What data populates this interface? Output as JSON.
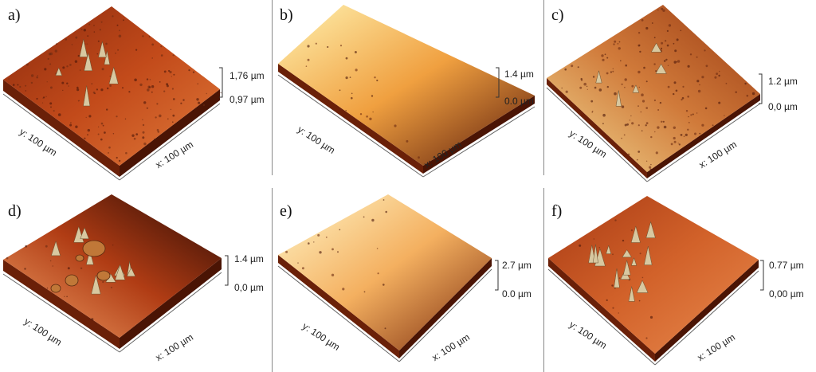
{
  "panels": [
    {
      "label": "a)",
      "y_axis": "y: 100 µm",
      "x_axis": "x: 100 µm",
      "z_top": "1,76 µm",
      "z_bottom": "0,97 µm",
      "texture": "rough-red",
      "colors": [
        "#8a2a0e",
        "#c24a1a",
        "#e07a3a"
      ]
    },
    {
      "label": "b)",
      "y_axis": "y: 100 µm",
      "x_axis": "x: 100 µm",
      "z_top": "1.4 µm",
      "z_bottom": "0.0 µm",
      "texture": "smooth-gradient",
      "colors": [
        "#fff2b0",
        "#f0a040",
        "#5a1a0a"
      ]
    },
    {
      "label": "c)",
      "y_axis": "y: 100 µm",
      "x_axis": "x: 100 µm",
      "z_top": "1.2 µm",
      "z_bottom": "0,0 µm",
      "texture": "rough-mixed",
      "colors": [
        "#9a3a12",
        "#d07a3a",
        "#f2d890"
      ]
    },
    {
      "label": "d)",
      "y_axis": "y: 100 µm",
      "x_axis": "x: 100 µm",
      "z_top": "1.4 µm",
      "z_bottom": "0,0 µm",
      "texture": "dark-corner",
      "colors": [
        "#2a0a04",
        "#b03c14",
        "#f0a066"
      ]
    },
    {
      "label": "e)",
      "y_axis": "y: 100 µm",
      "x_axis": "x: 100 µm",
      "z_top": "2.7 µm",
      "z_bottom": "0.0 µm",
      "texture": "smooth-light",
      "colors": [
        "#fff6c8",
        "#f4b060",
        "#7a2a0c"
      ]
    },
    {
      "label": "f)",
      "y_axis": "y: 100 µm",
      "x_axis": "x: 100 µm",
      "z_top": "0.77 µm",
      "z_bottom": "0,00 µm",
      "texture": "smooth-red",
      "colors": [
        "#a83a14",
        "#d2622a",
        "#e88a4e"
      ]
    }
  ]
}
